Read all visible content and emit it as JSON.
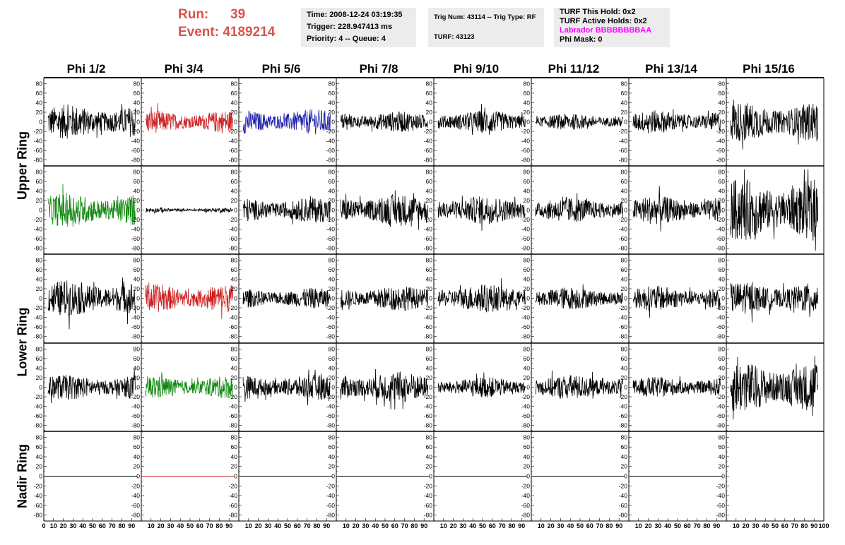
{
  "header": {
    "run_label": "Run:",
    "run_value": "39",
    "event_label": "Event:",
    "event_value": "4189214"
  },
  "info_time": {
    "time": "Time: 2008-12-24 03:19:35",
    "trigger": "Trigger: 228.947413 ms",
    "priority": "Priority: 4 -- Queue: 4"
  },
  "info_trig": {
    "trig": "Trig Num: 43114 -- Trig Type: RF",
    "turf": "TURF: 43123"
  },
  "info_turf": {
    "hold": "TURF This Hold: 0x2",
    "active": "TURF Active Holds: 0x2",
    "labrador": "Labrador BBBBBBBBAA",
    "phimask": "Phi Mask: 0"
  },
  "colors": {
    "labrador": "#ff00ff",
    "run_text": "#d9534f",
    "red_trace": "#cc2222",
    "blue_trace": "#2222aa",
    "green_trace": "#118811",
    "black_trace": "#000000",
    "info_bg": "#ececec"
  },
  "columns": [
    "Phi 1/2",
    "Phi 3/4",
    "Phi 5/6",
    "Phi 7/8",
    "Phi 9/10",
    "Phi 11/12",
    "Phi 13/14",
    "Phi 15/16"
  ],
  "rows": [
    "Upper Ring",
    "Lower Ring",
    "Nadir Ring"
  ],
  "y_ticks": [
    "80",
    "60",
    "40",
    "20",
    "0",
    "-20",
    "-40",
    "-60",
    "-80"
  ],
  "x_axis_labels": [
    "0",
    "10",
    "20",
    "30",
    "40",
    "50",
    "60",
    "70",
    "80",
    "90",
    "100"
  ],
  "chart_data": {
    "type": "line",
    "grid": false,
    "ylim": [
      -85,
      85
    ],
    "xlim": [
      0,
      100
    ],
    "panels": [
      {
        "row": 0,
        "col": 0,
        "color": "black",
        "amplitude": 30
      },
      {
        "row": 0,
        "col": 1,
        "color": "red",
        "amplitude": 20
      },
      {
        "row": 0,
        "col": 2,
        "color": "blue",
        "amplitude": 22
      },
      {
        "row": 0,
        "col": 3,
        "color": "black",
        "amplitude": 18
      },
      {
        "row": 0,
        "col": 4,
        "color": "black",
        "amplitude": 20
      },
      {
        "row": 0,
        "col": 5,
        "color": "black",
        "amplitude": 14
      },
      {
        "row": 0,
        "col": 6,
        "color": "black",
        "amplitude": 20
      },
      {
        "row": 0,
        "col": 7,
        "color": "black",
        "amplitude": 35
      },
      {
        "row": 1,
        "col": 0,
        "color": "green",
        "amplitude": 30
      },
      {
        "row": 1,
        "col": 1,
        "color": "black",
        "amplitude": 4
      },
      {
        "row": 1,
        "col": 2,
        "color": "black",
        "amplitude": 22
      },
      {
        "row": 1,
        "col": 3,
        "color": "black",
        "amplitude": 28
      },
      {
        "row": 1,
        "col": 4,
        "color": "black",
        "amplitude": 25
      },
      {
        "row": 1,
        "col": 5,
        "color": "black",
        "amplitude": 22
      },
      {
        "row": 1,
        "col": 6,
        "color": "black",
        "amplitude": 25
      },
      {
        "row": 1,
        "col": 7,
        "color": "black",
        "amplitude": 55
      },
      {
        "row": 2,
        "col": 0,
        "color": "black",
        "amplitude": 32
      },
      {
        "row": 2,
        "col": 1,
        "color": "red",
        "amplitude": 25
      },
      {
        "row": 2,
        "col": 2,
        "color": "black",
        "amplitude": 18
      },
      {
        "row": 2,
        "col": 3,
        "color": "black",
        "amplitude": 22
      },
      {
        "row": 2,
        "col": 4,
        "color": "black",
        "amplitude": 25
      },
      {
        "row": 2,
        "col": 5,
        "color": "black",
        "amplitude": 20
      },
      {
        "row": 2,
        "col": 6,
        "color": "black",
        "amplitude": 22
      },
      {
        "row": 2,
        "col": 7,
        "color": "black",
        "amplitude": 28
      },
      {
        "row": 3,
        "col": 0,
        "color": "black",
        "amplitude": 22
      },
      {
        "row": 3,
        "col": 1,
        "color": "green",
        "amplitude": 20
      },
      {
        "row": 3,
        "col": 2,
        "color": "black",
        "amplitude": 22
      },
      {
        "row": 3,
        "col": 3,
        "color": "black",
        "amplitude": 28
      },
      {
        "row": 3,
        "col": 4,
        "color": "black",
        "amplitude": 18
      },
      {
        "row": 3,
        "col": 5,
        "color": "black",
        "amplitude": 22
      },
      {
        "row": 3,
        "col": 6,
        "color": "black",
        "amplitude": 18
      },
      {
        "row": 3,
        "col": 7,
        "color": "black",
        "amplitude": 45
      },
      {
        "row": 4,
        "col": 0,
        "color": "black",
        "amplitude": 0
      },
      {
        "row": 4,
        "col": 1,
        "color": "red",
        "amplitude": 0
      },
      {
        "row": 4,
        "col": 2,
        "color": "black",
        "amplitude": 0
      },
      {
        "row": 4,
        "col": 3,
        "color": "black",
        "amplitude": 0
      },
      {
        "row": 4,
        "col": 4,
        "color": "black",
        "amplitude": 0
      },
      {
        "row": 4,
        "col": 5,
        "color": "black",
        "amplitude": 0
      },
      {
        "row": 4,
        "col": 6,
        "color": "black",
        "amplitude": 0
      },
      {
        "row": 4,
        "col": 7,
        "color": "none",
        "amplitude": 0
      }
    ]
  }
}
